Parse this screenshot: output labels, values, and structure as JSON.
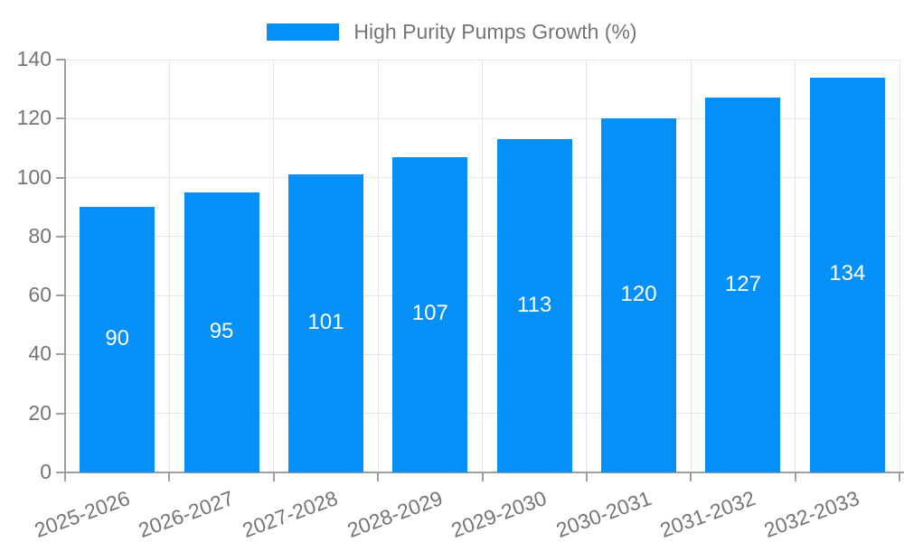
{
  "chart_data": {
    "type": "bar",
    "series_name": "High Purity Pumps Growth (%)",
    "categories": [
      "2025-2026",
      "2026-2027",
      "2027-2028",
      "2028-2029",
      "2029-2030",
      "2030-2031",
      "2031-2032",
      "2032-2033"
    ],
    "values": [
      90,
      95,
      101,
      107,
      113,
      120,
      127,
      134
    ],
    "y_ticks": [
      0,
      20,
      40,
      60,
      80,
      100,
      120,
      140
    ],
    "ylim": [
      0,
      140
    ],
    "grid": true,
    "legend_position": "top",
    "bar_color": "#0590f7",
    "value_label_color": "#ffffff",
    "axis_text_color": "#757575",
    "axis_line_color": "#9e9e9e",
    "gridline_color": "#e6e6e6"
  }
}
